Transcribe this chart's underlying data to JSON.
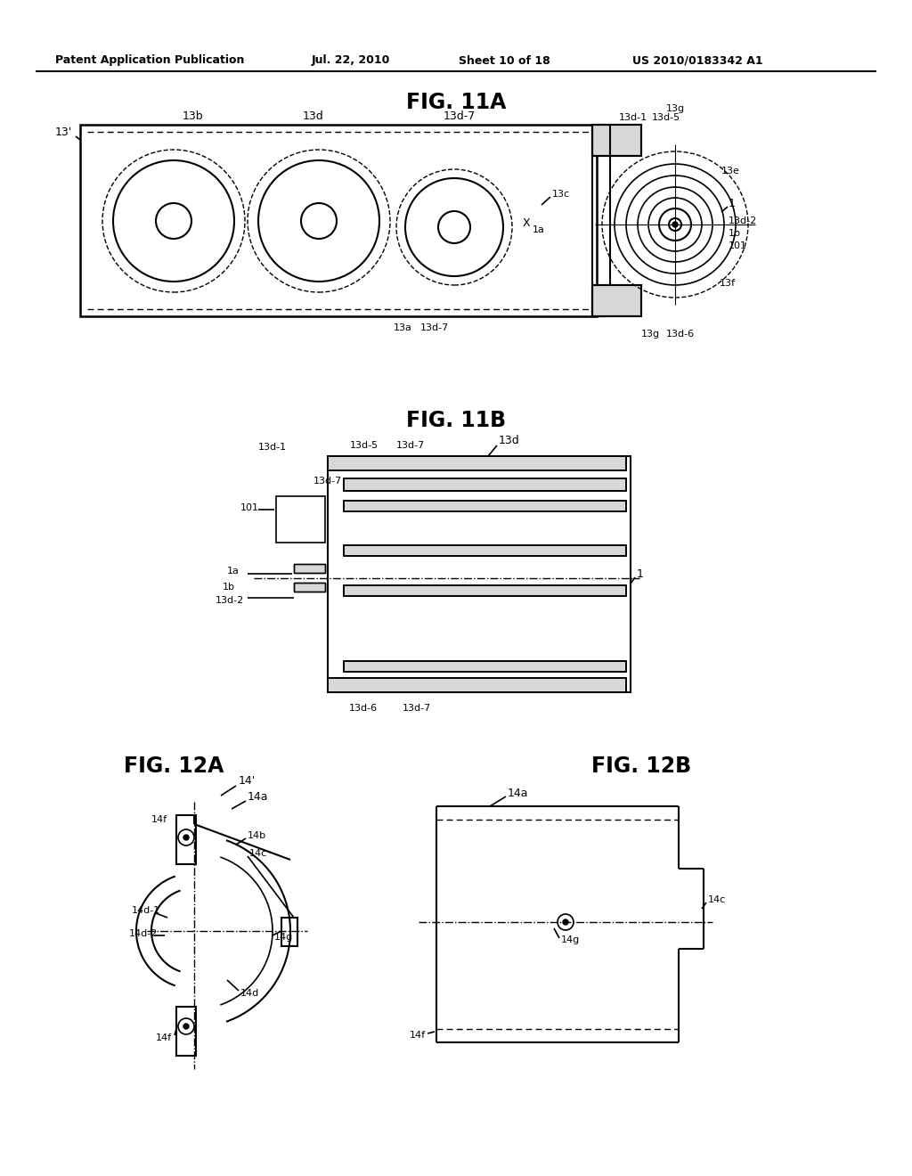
{
  "bg_color": "#ffffff",
  "line_color": "#000000",
  "header_text": "Patent Application Publication",
  "header_date": "Jul. 22, 2010",
  "header_sheet": "Sheet 10 of 18",
  "header_patent": "US 2010/0183342 A1",
  "fig11a_title": "FIG. 11A",
  "fig11b_title": "FIG. 11B",
  "fig12a_title": "FIG. 12A",
  "fig12b_title": "FIG. 12B"
}
